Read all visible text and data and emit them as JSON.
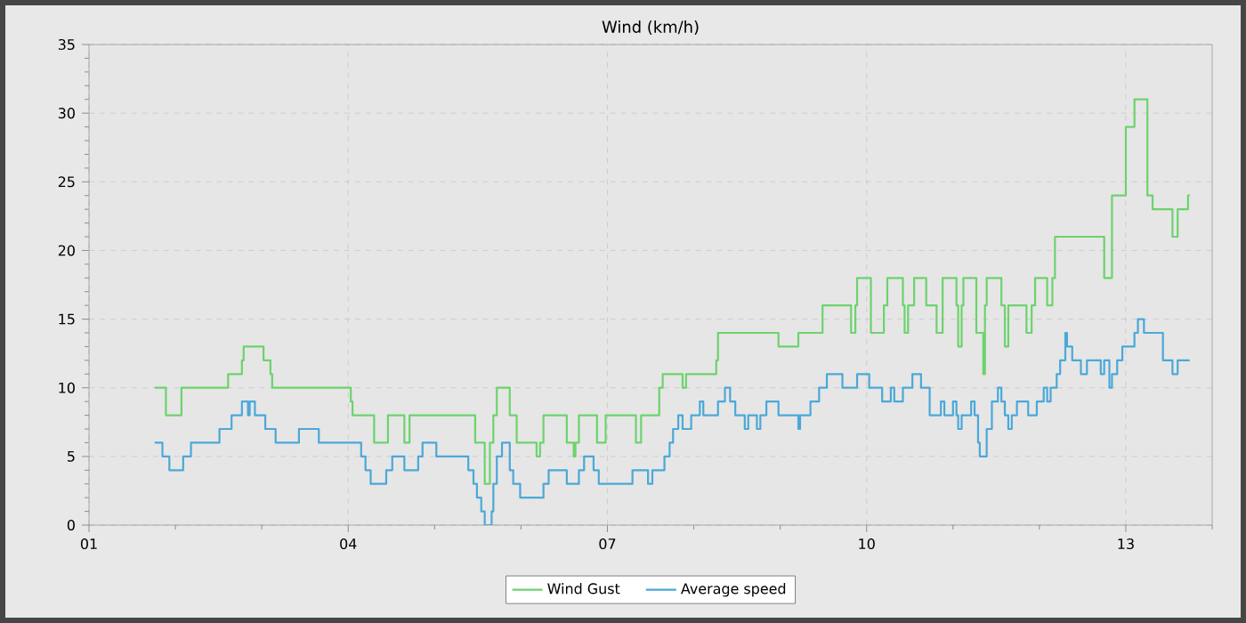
{
  "chart_data": {
    "type": "step",
    "title": "Wind (km/h)",
    "xlim": [
      1,
      14
    ],
    "ylim": [
      0,
      35
    ],
    "xticks": [
      {
        "value": 1,
        "label": "01"
      },
      {
        "value": 2,
        "label": null
      },
      {
        "value": 3,
        "label": null
      },
      {
        "value": 4,
        "label": "04"
      },
      {
        "value": 5,
        "label": null
      },
      {
        "value": 6,
        "label": null
      },
      {
        "value": 7,
        "label": "07"
      },
      {
        "value": 8,
        "label": null
      },
      {
        "value": 9,
        "label": null
      },
      {
        "value": 10,
        "label": "10"
      },
      {
        "value": 11,
        "label": null
      },
      {
        "value": 12,
        "label": null
      },
      {
        "value": 13,
        "label": "13"
      },
      {
        "value": 14,
        "label": null
      }
    ],
    "yticks": [
      0,
      {
        "value": 1,
        "label": null
      },
      {
        "value": 2,
        "label": null
      },
      {
        "value": 3,
        "label": null
      },
      {
        "value": 4,
        "label": null
      },
      5,
      {
        "value": 6,
        "label": null
      },
      {
        "value": 7,
        "label": null
      },
      {
        "value": 8,
        "label": null
      },
      {
        "value": 9,
        "label": null
      },
      10,
      {
        "value": 11,
        "label": null
      },
      {
        "value": 12,
        "label": null
      },
      {
        "value": 13,
        "label": null
      },
      {
        "value": 14,
        "label": null
      },
      15,
      {
        "value": 16,
        "label": null
      },
      {
        "value": 17,
        "label": null
      },
      {
        "value": 18,
        "label": null
      },
      {
        "value": 19,
        "label": null
      },
      20,
      {
        "value": 21,
        "label": null
      },
      {
        "value": 22,
        "label": null
      },
      {
        "value": 23,
        "label": null
      },
      {
        "value": 24,
        "label": null
      },
      25,
      {
        "value": 26,
        "label": null
      },
      {
        "value": 27,
        "label": null
      },
      {
        "value": 28,
        "label": null
      },
      {
        "value": 29,
        "label": null
      },
      30,
      {
        "value": 31,
        "label": null
      },
      {
        "value": 32,
        "label": null
      },
      {
        "value": 33,
        "label": null
      },
      {
        "value": 34,
        "label": null
      },
      35
    ],
    "grid": true,
    "legend": "bottom",
    "marker": "none",
    "series": [
      {
        "name": "Wind Gust",
        "color": "#6cd36c",
        "x": [
          1.76,
          1.89,
          2.07,
          2.61,
          2.77,
          2.79,
          3.02,
          3.1,
          3.12,
          4.03,
          4.05,
          4.3,
          4.46,
          4.65,
          4.71,
          5.47,
          5.58,
          5.64,
          5.68,
          5.72,
          5.87,
          5.95,
          6.18,
          6.22,
          6.26,
          6.53,
          6.61,
          6.63,
          6.67,
          6.88,
          6.98,
          7.33,
          7.39,
          7.6,
          7.64,
          7.87,
          7.91,
          8.26,
          8.28,
          8.98,
          9.21,
          9.49,
          9.82,
          9.87,
          9.89,
          10.05,
          10.2,
          10.24,
          10.42,
          10.44,
          10.48,
          10.55,
          10.69,
          10.81,
          10.88,
          11.04,
          11.06,
          11.1,
          11.12,
          11.27,
          11.35,
          11.37,
          11.39,
          11.56,
          11.6,
          11.64,
          11.85,
          11.91,
          11.95,
          12.09,
          12.15,
          12.18,
          12.75,
          12.84,
          13.0,
          13.1,
          13.25,
          13.31,
          13.54,
          13.6,
          13.72,
          13.74
        ],
        "values": [
          10,
          8,
          10,
          11,
          12,
          13,
          12,
          11,
          10,
          9,
          8,
          6,
          8,
          6,
          8,
          6,
          3,
          6,
          8,
          10,
          8,
          6,
          5,
          6,
          8,
          6,
          5,
          6,
          8,
          6,
          8,
          6,
          8,
          10,
          11,
          10,
          11,
          12,
          14,
          13,
          14,
          16,
          14,
          16,
          18,
          14,
          16,
          18,
          16,
          14,
          16,
          18,
          16,
          14,
          18,
          16,
          13,
          16,
          18,
          14,
          11,
          16,
          18,
          16,
          13,
          16,
          14,
          16,
          18,
          16,
          18,
          21,
          18,
          24,
          29,
          31,
          24,
          23,
          21,
          23,
          24,
          24
        ]
      },
      {
        "name": "Average speed",
        "color": "#4aa8d8",
        "x": [
          1.76,
          1.85,
          1.93,
          2.09,
          2.18,
          2.51,
          2.65,
          2.77,
          2.84,
          2.86,
          2.92,
          3.04,
          3.16,
          3.43,
          3.66,
          4.15,
          4.2,
          4.26,
          4.44,
          4.51,
          4.65,
          4.81,
          4.86,
          5.02,
          5.39,
          5.45,
          5.49,
          5.54,
          5.58,
          5.66,
          5.68,
          5.72,
          5.78,
          5.87,
          5.91,
          5.99,
          6.26,
          6.32,
          6.53,
          6.67,
          6.73,
          6.84,
          6.9,
          7.29,
          7.47,
          7.52,
          7.66,
          7.72,
          7.76,
          7.82,
          7.87,
          7.97,
          8.07,
          8.11,
          8.28,
          8.36,
          8.42,
          8.48,
          8.59,
          8.63,
          8.73,
          8.77,
          8.84,
          8.98,
          9.21,
          9.23,
          9.35,
          9.45,
          9.54,
          9.72,
          9.89,
          10.03,
          10.18,
          10.28,
          10.32,
          10.42,
          10.53,
          10.63,
          10.73,
          10.86,
          10.9,
          11.0,
          11.04,
          11.06,
          11.1,
          11.21,
          11.25,
          11.29,
          11.31,
          11.39,
          11.45,
          11.52,
          11.56,
          11.6,
          11.64,
          11.68,
          11.74,
          11.87,
          11.97,
          12.05,
          12.09,
          12.13,
          12.2,
          12.24,
          12.3,
          12.32,
          12.38,
          12.48,
          12.55,
          12.71,
          12.75,
          12.81,
          12.84,
          12.9,
          12.96,
          13.1,
          13.14,
          13.21,
          13.43,
          13.54,
          13.6,
          13.74
        ],
        "values": [
          6,
          5,
          4,
          5,
          6,
          7,
          8,
          9,
          8,
          9,
          8,
          7,
          6,
          7,
          6,
          5,
          4,
          3,
          4,
          5,
          4,
          5,
          6,
          5,
          4,
          3,
          2,
          1,
          0,
          1,
          3,
          5,
          6,
          4,
          3,
          2,
          3,
          4,
          3,
          4,
          5,
          4,
          3,
          4,
          3,
          4,
          5,
          6,
          7,
          8,
          7,
          8,
          9,
          8,
          9,
          10,
          9,
          8,
          7,
          8,
          7,
          8,
          9,
          8,
          7,
          8,
          9,
          10,
          11,
          10,
          11,
          10,
          9,
          10,
          9,
          10,
          11,
          10,
          8,
          9,
          8,
          9,
          8,
          7,
          8,
          9,
          8,
          6,
          5,
          7,
          9,
          10,
          9,
          8,
          7,
          8,
          9,
          8,
          9,
          10,
          9,
          10,
          11,
          12,
          14,
          13,
          12,
          11,
          12,
          11,
          12,
          10,
          11,
          12,
          13,
          14,
          15,
          14,
          12,
          11,
          12,
          12
        ]
      }
    ]
  }
}
